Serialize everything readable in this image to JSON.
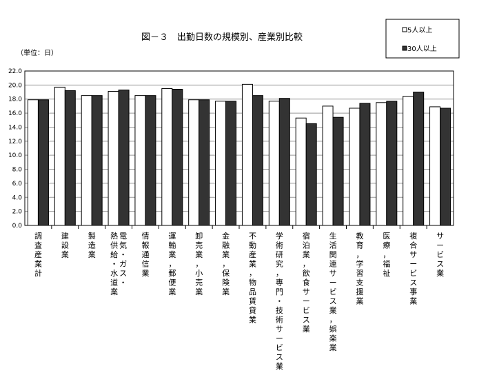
{
  "chart_data": {
    "type": "bar",
    "title": "図－３　出勤日数の規模別、産業別比較",
    "unit_label": "（単位：日）",
    "ylim": [
      0,
      22
    ],
    "yticks": [
      "0.0",
      "2.0",
      "4.0",
      "6.0",
      "8.0",
      "10.0",
      "12.0",
      "14.0",
      "16.0",
      "18.0",
      "20.0",
      "22.0"
    ],
    "grid": true,
    "legend_position": "top-right",
    "categories": [
      "調査産業計",
      "建設業",
      "製造業",
      "電気・ガス・熱供給・水道業",
      "情報通信業",
      "運輸業，郵便業",
      "卸売業，小売業",
      "金融業，保険業",
      "不動産業，物品賃貸業",
      "学術研究，専門・技術サービス業",
      "宿泊業，飲食サービス業",
      "生活関連サービス業，娯楽業",
      "教育，学習支援業",
      "医療，福祉",
      "複合サービス事業",
      "サービス業"
    ],
    "category_lines": [
      [
        "調査産業計"
      ],
      [
        "建設業"
      ],
      [
        "製造業"
      ],
      [
        "電気・ガス・",
        "熱供給・水道業"
      ],
      [
        "情報通信業"
      ],
      [
        "運輸業，郵便業"
      ],
      [
        "卸売業，小売業"
      ],
      [
        "金融業，保険業"
      ],
      [
        "不動産業，物品賃貸業"
      ],
      [
        "学術研究，専門・技術サービス業"
      ],
      [
        "宿泊業，飲食サービス業"
      ],
      [
        "生活関連サービス業，娯楽業"
      ],
      [
        "教育，学習支援業"
      ],
      [
        "医療，福祉"
      ],
      [
        "複合サービス事業"
      ],
      [
        "サービス業"
      ]
    ],
    "series": [
      {
        "name": "5人以上",
        "color": "#ffffff",
        "values": [
          17.9,
          19.7,
          18.5,
          19.1,
          18.5,
          19.5,
          17.9,
          17.7,
          20.1,
          17.7,
          15.3,
          17.0,
          16.7,
          17.5,
          18.4,
          16.9
        ]
      },
      {
        "name": "30人以上",
        "color": "#333333",
        "values": [
          17.9,
          19.2,
          18.5,
          19.3,
          18.5,
          19.4,
          17.9,
          17.7,
          18.5,
          18.1,
          14.5,
          15.4,
          17.4,
          17.7,
          19.0,
          16.7
        ]
      }
    ]
  }
}
